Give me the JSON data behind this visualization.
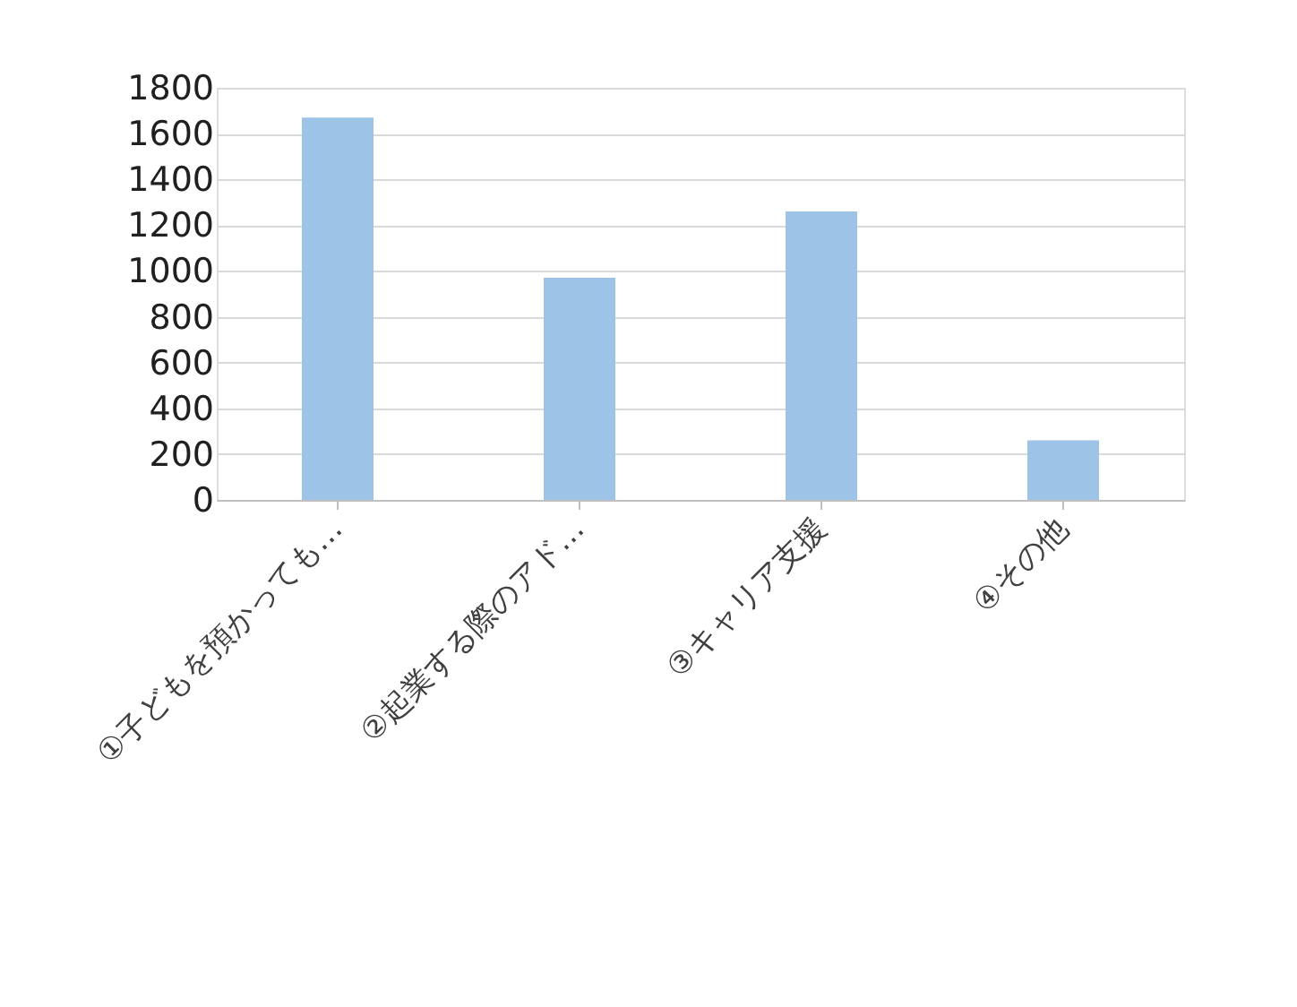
{
  "chart_data": {
    "type": "bar",
    "categories": [
      "①子どもを預かっても…",
      "②起業する際のアド…",
      "③キャリア支援",
      "④その他"
    ],
    "values": [
      1670,
      970,
      1260,
      260
    ],
    "color": "#9dc3e6",
    "ylim": [
      0,
      1800
    ],
    "yticks": [
      0,
      200,
      400,
      600,
      800,
      1000,
      1200,
      1400,
      1600,
      1800
    ],
    "grid": "y"
  }
}
